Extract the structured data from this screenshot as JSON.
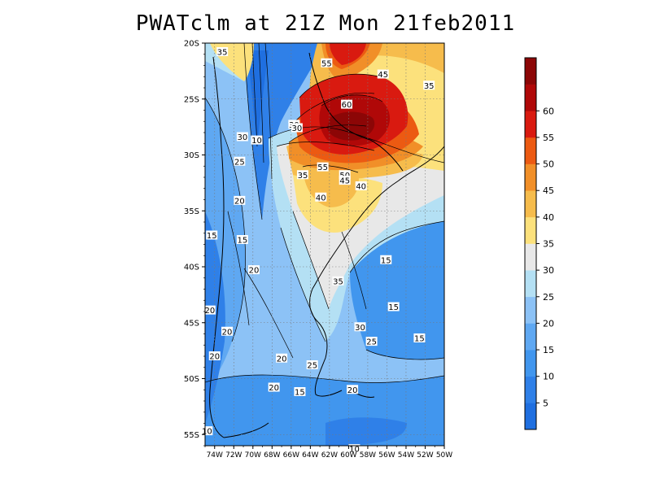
{
  "title": "PWATclm at 21Z Mon 21feb2011",
  "lat_labels": [
    "20S",
    "25S",
    "30S",
    "35S",
    "40S",
    "45S",
    "50S",
    "55S"
  ],
  "lon_labels": [
    "74W",
    "72W",
    "70W",
    "68W",
    "66W",
    "64W",
    "62W",
    "60W",
    "58W",
    "56W",
    "54W",
    "52W",
    "50W"
  ],
  "colorbar": {
    "labels": [
      "5",
      "10",
      "15",
      "20",
      "25",
      "30",
      "35",
      "40",
      "45",
      "50",
      "55",
      "60"
    ],
    "colors": [
      "#1f6fe0",
      "#2f80e8",
      "#4196ee",
      "#5fa8f2",
      "#8cc2f6",
      "#b4e0f4",
      "#e8e8e8",
      "#fce17c",
      "#f6bc4c",
      "#f18f28",
      "#ec5a12",
      "#d91a10",
      "#b00808",
      "#8c0606"
    ]
  },
  "contour_labels": [
    {
      "t": "35",
      "lon": -73.2,
      "lat": -20.8
    },
    {
      "t": "55",
      "lon": -62.3,
      "lat": -21.8
    },
    {
      "t": "45",
      "lon": -56.4,
      "lat": -22.8
    },
    {
      "t": "35",
      "lon": -51.6,
      "lat": -23.8
    },
    {
      "t": "60",
      "lon": -60.2,
      "lat": -25.5
    },
    {
      "t": "30",
      "lon": -65.7,
      "lat": -27.3
    },
    {
      "t": "30",
      "lon": -65.4,
      "lat": -27.6
    },
    {
      "t": "30",
      "lon": -71.1,
      "lat": -28.4
    },
    {
      "t": "10",
      "lon": -69.6,
      "lat": -28.7
    },
    {
      "t": "25",
      "lon": -71.4,
      "lat": -30.6
    },
    {
      "t": "55",
      "lon": -62.7,
      "lat": -31.1
    },
    {
      "t": "35",
      "lon": -64.8,
      "lat": -31.8
    },
    {
      "t": "50",
      "lon": -60.4,
      "lat": -31.8
    },
    {
      "t": "45",
      "lon": -60.4,
      "lat": -32.3
    },
    {
      "t": "40",
      "lon": -58.7,
      "lat": -32.8
    },
    {
      "t": "40",
      "lon": -62.9,
      "lat": -33.8
    },
    {
      "t": "20",
      "lon": -71.4,
      "lat": -34.1
    },
    {
      "t": "15",
      "lon": -74.3,
      "lat": -37.2
    },
    {
      "t": "15",
      "lon": -71.1,
      "lat": -37.6
    },
    {
      "t": "15",
      "lon": -56.1,
      "lat": -39.4
    },
    {
      "t": "20",
      "lon": -69.9,
      "lat": -40.3
    },
    {
      "t": "35",
      "lon": -61.1,
      "lat": -41.3
    },
    {
      "t": "15",
      "lon": -55.3,
      "lat": -43.6
    },
    {
      "t": "20",
      "lon": -74.5,
      "lat": -43.9
    },
    {
      "t": "30",
      "lon": -58.8,
      "lat": -45.4
    },
    {
      "t": "20",
      "lon": -72.7,
      "lat": -45.8
    },
    {
      "t": "15",
      "lon": -52.6,
      "lat": -46.4
    },
    {
      "t": "25",
      "lon": -57.6,
      "lat": -46.7
    },
    {
      "t": "20",
      "lon": -74.0,
      "lat": -48.0
    },
    {
      "t": "20",
      "lon": -67.0,
      "lat": -48.2
    },
    {
      "t": "25",
      "lon": -63.8,
      "lat": -48.8
    },
    {
      "t": "20",
      "lon": -67.8,
      "lat": -50.8
    },
    {
      "t": "20",
      "lon": -59.6,
      "lat": -51.0
    },
    {
      "t": "15",
      "lon": -65.1,
      "lat": -51.2
    },
    {
      "t": "10",
      "lon": -74.8,
      "lat": -54.7
    },
    {
      "t": "10",
      "lon": -59.4,
      "lat": -56.3
    }
  ]
}
